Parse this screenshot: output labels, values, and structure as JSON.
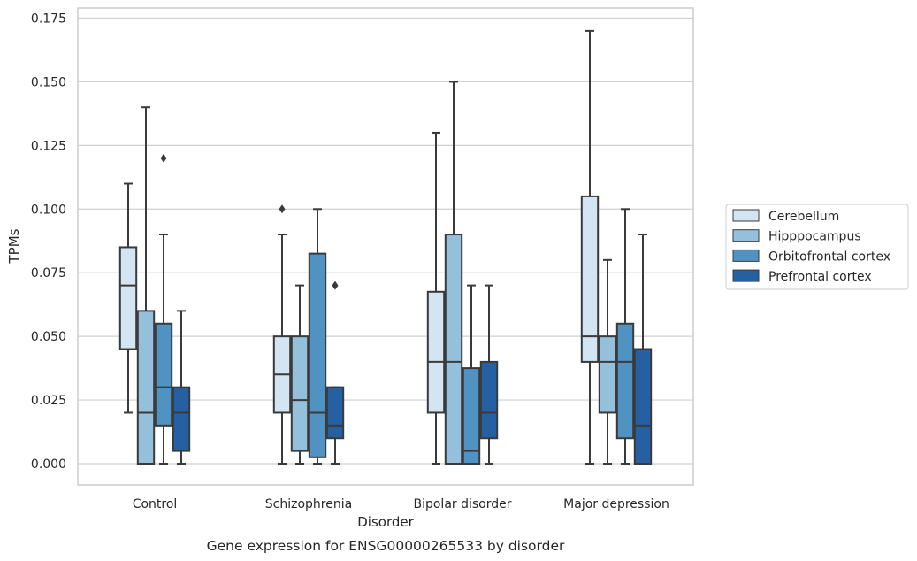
{
  "chart_data": {
    "type": "box",
    "caption": "Gene expression for ENSG00000265533 by disorder",
    "xlabel": "Disorder",
    "ylabel": "TPMs",
    "ylim": [
      -0.0085,
      0.179
    ],
    "yticks": [
      0.0,
      0.025,
      0.05,
      0.075,
      0.1,
      0.125,
      0.15,
      0.175
    ],
    "ytick_labels": [
      "0.000",
      "0.025",
      "0.050",
      "0.075",
      "0.100",
      "0.125",
      "0.150",
      "0.175"
    ],
    "grid": "horizontal",
    "legend_position": "right",
    "categories": [
      "Control",
      "Schizophrenia",
      "Bipolar disorder",
      "Major depression"
    ],
    "series": [
      {
        "name": "Cerebellum",
        "color": "#d3e4f3",
        "boxes": [
          {
            "whislo": 0.02,
            "q1": 0.045,
            "med": 0.07,
            "q3": 0.085,
            "whishi": 0.11,
            "fliers": []
          },
          {
            "whislo": 0.0,
            "q1": 0.02,
            "med": 0.035,
            "q3": 0.05,
            "whishi": 0.09,
            "fliers": [
              0.1
            ]
          },
          {
            "whislo": 0.0,
            "q1": 0.02,
            "med": 0.04,
            "q3": 0.0675,
            "whishi": 0.13,
            "fliers": []
          },
          {
            "whislo": 0.0,
            "q1": 0.04,
            "med": 0.05,
            "q3": 0.105,
            "whishi": 0.17,
            "fliers": []
          }
        ]
      },
      {
        "name": "Hipppocampus",
        "color": "#94c0dc",
        "boxes": [
          {
            "whislo": 0.0,
            "q1": 0.0,
            "med": 0.02,
            "q3": 0.06,
            "whishi": 0.14,
            "fliers": []
          },
          {
            "whislo": 0.0,
            "q1": 0.005,
            "med": 0.025,
            "q3": 0.05,
            "whishi": 0.07,
            "fliers": []
          },
          {
            "whislo": 0.0,
            "q1": 0.0,
            "med": 0.04,
            "q3": 0.09,
            "whishi": 0.15,
            "fliers": []
          },
          {
            "whislo": 0.0,
            "q1": 0.02,
            "med": 0.04,
            "q3": 0.05,
            "whishi": 0.08,
            "fliers": []
          }
        ]
      },
      {
        "name": "Orbitofrontal cortex",
        "color": "#5092c1",
        "boxes": [
          {
            "whislo": 0.0,
            "q1": 0.015,
            "med": 0.03,
            "q3": 0.055,
            "whishi": 0.09,
            "fliers": [
              0.12
            ]
          },
          {
            "whislo": 0.0,
            "q1": 0.0025,
            "med": 0.02,
            "q3": 0.0825,
            "whishi": 0.1,
            "fliers": []
          },
          {
            "whislo": 0.0,
            "q1": 0.0,
            "med": 0.005,
            "q3": 0.0375,
            "whishi": 0.07,
            "fliers": []
          },
          {
            "whislo": 0.0,
            "q1": 0.01,
            "med": 0.04,
            "q3": 0.055,
            "whishi": 0.1,
            "fliers": []
          }
        ]
      },
      {
        "name": "Prefrontal cortex",
        "color": "#2460a2",
        "boxes": [
          {
            "whislo": 0.0,
            "q1": 0.005,
            "med": 0.02,
            "q3": 0.03,
            "whishi": 0.06,
            "fliers": []
          },
          {
            "whislo": 0.0,
            "q1": 0.01,
            "med": 0.015,
            "q3": 0.03,
            "whishi": 0.03,
            "fliers": [
              0.07
            ]
          },
          {
            "whislo": 0.0,
            "q1": 0.01,
            "med": 0.02,
            "q3": 0.04,
            "whishi": 0.07,
            "fliers": []
          },
          {
            "whislo": 0.0,
            "q1": 0.0,
            "med": 0.015,
            "q3": 0.045,
            "whishi": 0.09,
            "fliers": []
          }
        ]
      }
    ],
    "colors": {
      "grid": "#d0d0d0",
      "frame": "#cccccc",
      "box_edge": "#3a3a3a",
      "text": "#262626"
    }
  }
}
